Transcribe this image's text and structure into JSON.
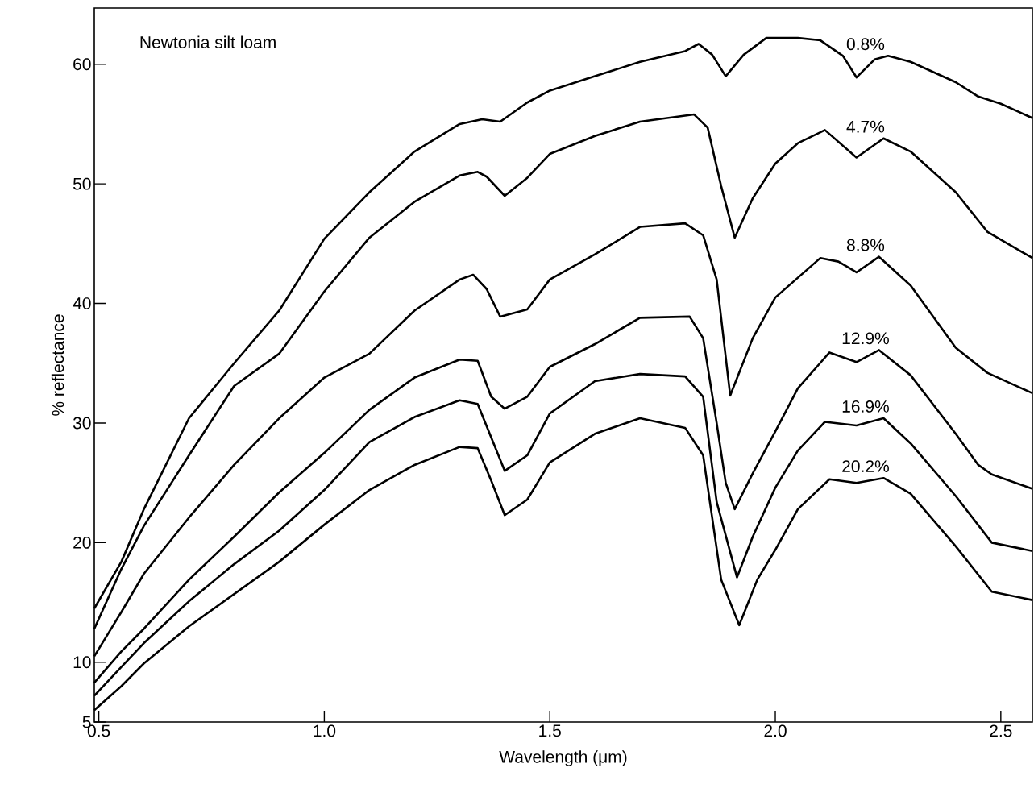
{
  "chart_data": {
    "type": "line",
    "annotations": [
      "Newtonia silt loam"
    ],
    "xlabel": "Wavelength (μm)",
    "ylabel": "% reflectance",
    "xlim": [
      0.49,
      2.57
    ],
    "ylim": [
      5,
      64.7
    ],
    "xticks": [
      0.5,
      {
        "value": 1,
        "label": "1.0"
      },
      1.5,
      {
        "value": 2,
        "label": "2.0"
      },
      2.5
    ],
    "yticks": [
      5,
      10,
      20,
      30,
      40,
      50,
      60
    ],
    "marker": "none",
    "line_style": "solid",
    "series": [
      {
        "name": "0.8%",
        "color": "#000000",
        "x": [
          0.49,
          0.55,
          0.6,
          0.7,
          0.8,
          0.9,
          1.0,
          1.1,
          1.2,
          1.3,
          1.35,
          1.39,
          1.45,
          1.5,
          1.6,
          1.7,
          1.8,
          1.83,
          1.86,
          1.89,
          1.93,
          1.98,
          2.05,
          2.1,
          2.15,
          2.18,
          2.22,
          2.25,
          2.3,
          2.4,
          2.45,
          2.5,
          2.57
        ],
        "values": [
          14.5,
          18.4,
          22.8,
          30.4,
          35.0,
          39.4,
          45.4,
          49.3,
          52.7,
          55.0,
          55.4,
          55.2,
          56.8,
          57.8,
          59.0,
          60.2,
          61.1,
          61.7,
          60.8,
          59.0,
          60.8,
          62.2,
          62.2,
          62.0,
          60.7,
          58.9,
          60.4,
          60.7,
          60.2,
          58.5,
          57.3,
          56.7,
          55.5
        ]
      },
      {
        "name": "4.7%",
        "color": "#000000",
        "x": [
          0.49,
          0.55,
          0.6,
          0.7,
          0.8,
          0.9,
          1.0,
          1.1,
          1.2,
          1.3,
          1.34,
          1.36,
          1.4,
          1.45,
          1.5,
          1.6,
          1.7,
          1.82,
          1.85,
          1.88,
          1.91,
          1.95,
          2.0,
          2.05,
          2.11,
          2.18,
          2.24,
          2.3,
          2.4,
          2.47,
          2.57
        ],
        "values": [
          12.8,
          17.8,
          21.4,
          27.3,
          33.1,
          35.8,
          41.0,
          45.5,
          48.5,
          50.7,
          51.0,
          50.6,
          49.0,
          50.5,
          52.5,
          54.0,
          55.2,
          55.8,
          54.7,
          49.8,
          45.5,
          48.8,
          51.7,
          53.4,
          54.5,
          52.2,
          53.8,
          52.7,
          49.3,
          46.0,
          43.8
        ]
      },
      {
        "name": "8.8%",
        "color": "#000000",
        "x": [
          0.49,
          0.55,
          0.6,
          0.7,
          0.8,
          0.9,
          1.0,
          1.1,
          1.2,
          1.3,
          1.33,
          1.36,
          1.39,
          1.45,
          1.5,
          1.6,
          1.7,
          1.8,
          1.84,
          1.87,
          1.9,
          1.95,
          2.0,
          2.1,
          2.14,
          2.18,
          2.23,
          2.3,
          2.4,
          2.47,
          2.57
        ],
        "values": [
          10.5,
          14.2,
          17.4,
          22.1,
          26.5,
          30.4,
          33.8,
          35.8,
          39.4,
          42.0,
          42.4,
          41.2,
          38.9,
          39.5,
          42.0,
          44.1,
          46.4,
          46.7,
          45.7,
          42.0,
          32.3,
          37.1,
          40.5,
          43.8,
          43.5,
          42.6,
          43.9,
          41.5,
          36.3,
          34.2,
          32.5
        ]
      },
      {
        "name": "12.9%",
        "color": "#000000",
        "x": [
          0.49,
          0.55,
          0.6,
          0.7,
          0.8,
          0.9,
          1.0,
          1.1,
          1.2,
          1.3,
          1.34,
          1.37,
          1.4,
          1.45,
          1.5,
          1.6,
          1.7,
          1.81,
          1.84,
          1.87,
          1.89,
          1.91,
          1.95,
          2.0,
          2.05,
          2.12,
          2.18,
          2.23,
          2.3,
          2.4,
          2.45,
          2.48,
          2.57
        ],
        "values": [
          8.3,
          10.9,
          12.8,
          16.9,
          20.5,
          24.2,
          27.5,
          31.1,
          33.8,
          35.3,
          35.2,
          32.2,
          31.2,
          32.2,
          34.7,
          36.6,
          38.8,
          38.9,
          37.1,
          30.0,
          25.0,
          22.8,
          25.8,
          29.3,
          32.9,
          35.9,
          35.1,
          36.1,
          34.0,
          29.1,
          26.5,
          25.7,
          24.5
        ]
      },
      {
        "name": "16.9%",
        "color": "#000000",
        "x": [
          0.49,
          0.55,
          0.6,
          0.7,
          0.8,
          0.9,
          1.0,
          1.1,
          1.2,
          1.3,
          1.34,
          1.37,
          1.4,
          1.45,
          1.5,
          1.6,
          1.7,
          1.8,
          1.84,
          1.87,
          1.915,
          1.95,
          2.0,
          2.05,
          2.11,
          2.18,
          2.24,
          2.3,
          2.4,
          2.48,
          2.57
        ],
        "values": [
          7.2,
          9.6,
          11.6,
          15.1,
          18.2,
          21.0,
          24.4,
          28.4,
          30.5,
          31.9,
          31.6,
          28.8,
          26.0,
          27.3,
          30.8,
          33.5,
          34.1,
          33.9,
          32.2,
          23.4,
          17.1,
          20.5,
          24.6,
          27.7,
          30.1,
          29.8,
          30.4,
          28.3,
          23.9,
          20.0,
          19.3
        ]
      },
      {
        "name": "20.2%",
        "color": "#000000",
        "x": [
          0.49,
          0.55,
          0.6,
          0.7,
          0.8,
          0.9,
          1.0,
          1.1,
          1.2,
          1.3,
          1.34,
          1.37,
          1.4,
          1.45,
          1.5,
          1.6,
          1.7,
          1.8,
          1.84,
          1.88,
          1.92,
          1.96,
          2.0,
          2.05,
          2.12,
          2.18,
          2.24,
          2.3,
          2.4,
          2.48,
          2.57
        ],
        "values": [
          6.0,
          8.0,
          9.9,
          13.0,
          15.7,
          18.4,
          21.5,
          24.4,
          26.5,
          28.0,
          27.9,
          25.2,
          22.3,
          23.6,
          26.7,
          29.1,
          30.4,
          29.6,
          27.3,
          16.9,
          13.1,
          16.9,
          19.4,
          22.8,
          25.3,
          25.0,
          25.4,
          24.1,
          19.7,
          15.9,
          15.2
        ]
      }
    ]
  }
}
